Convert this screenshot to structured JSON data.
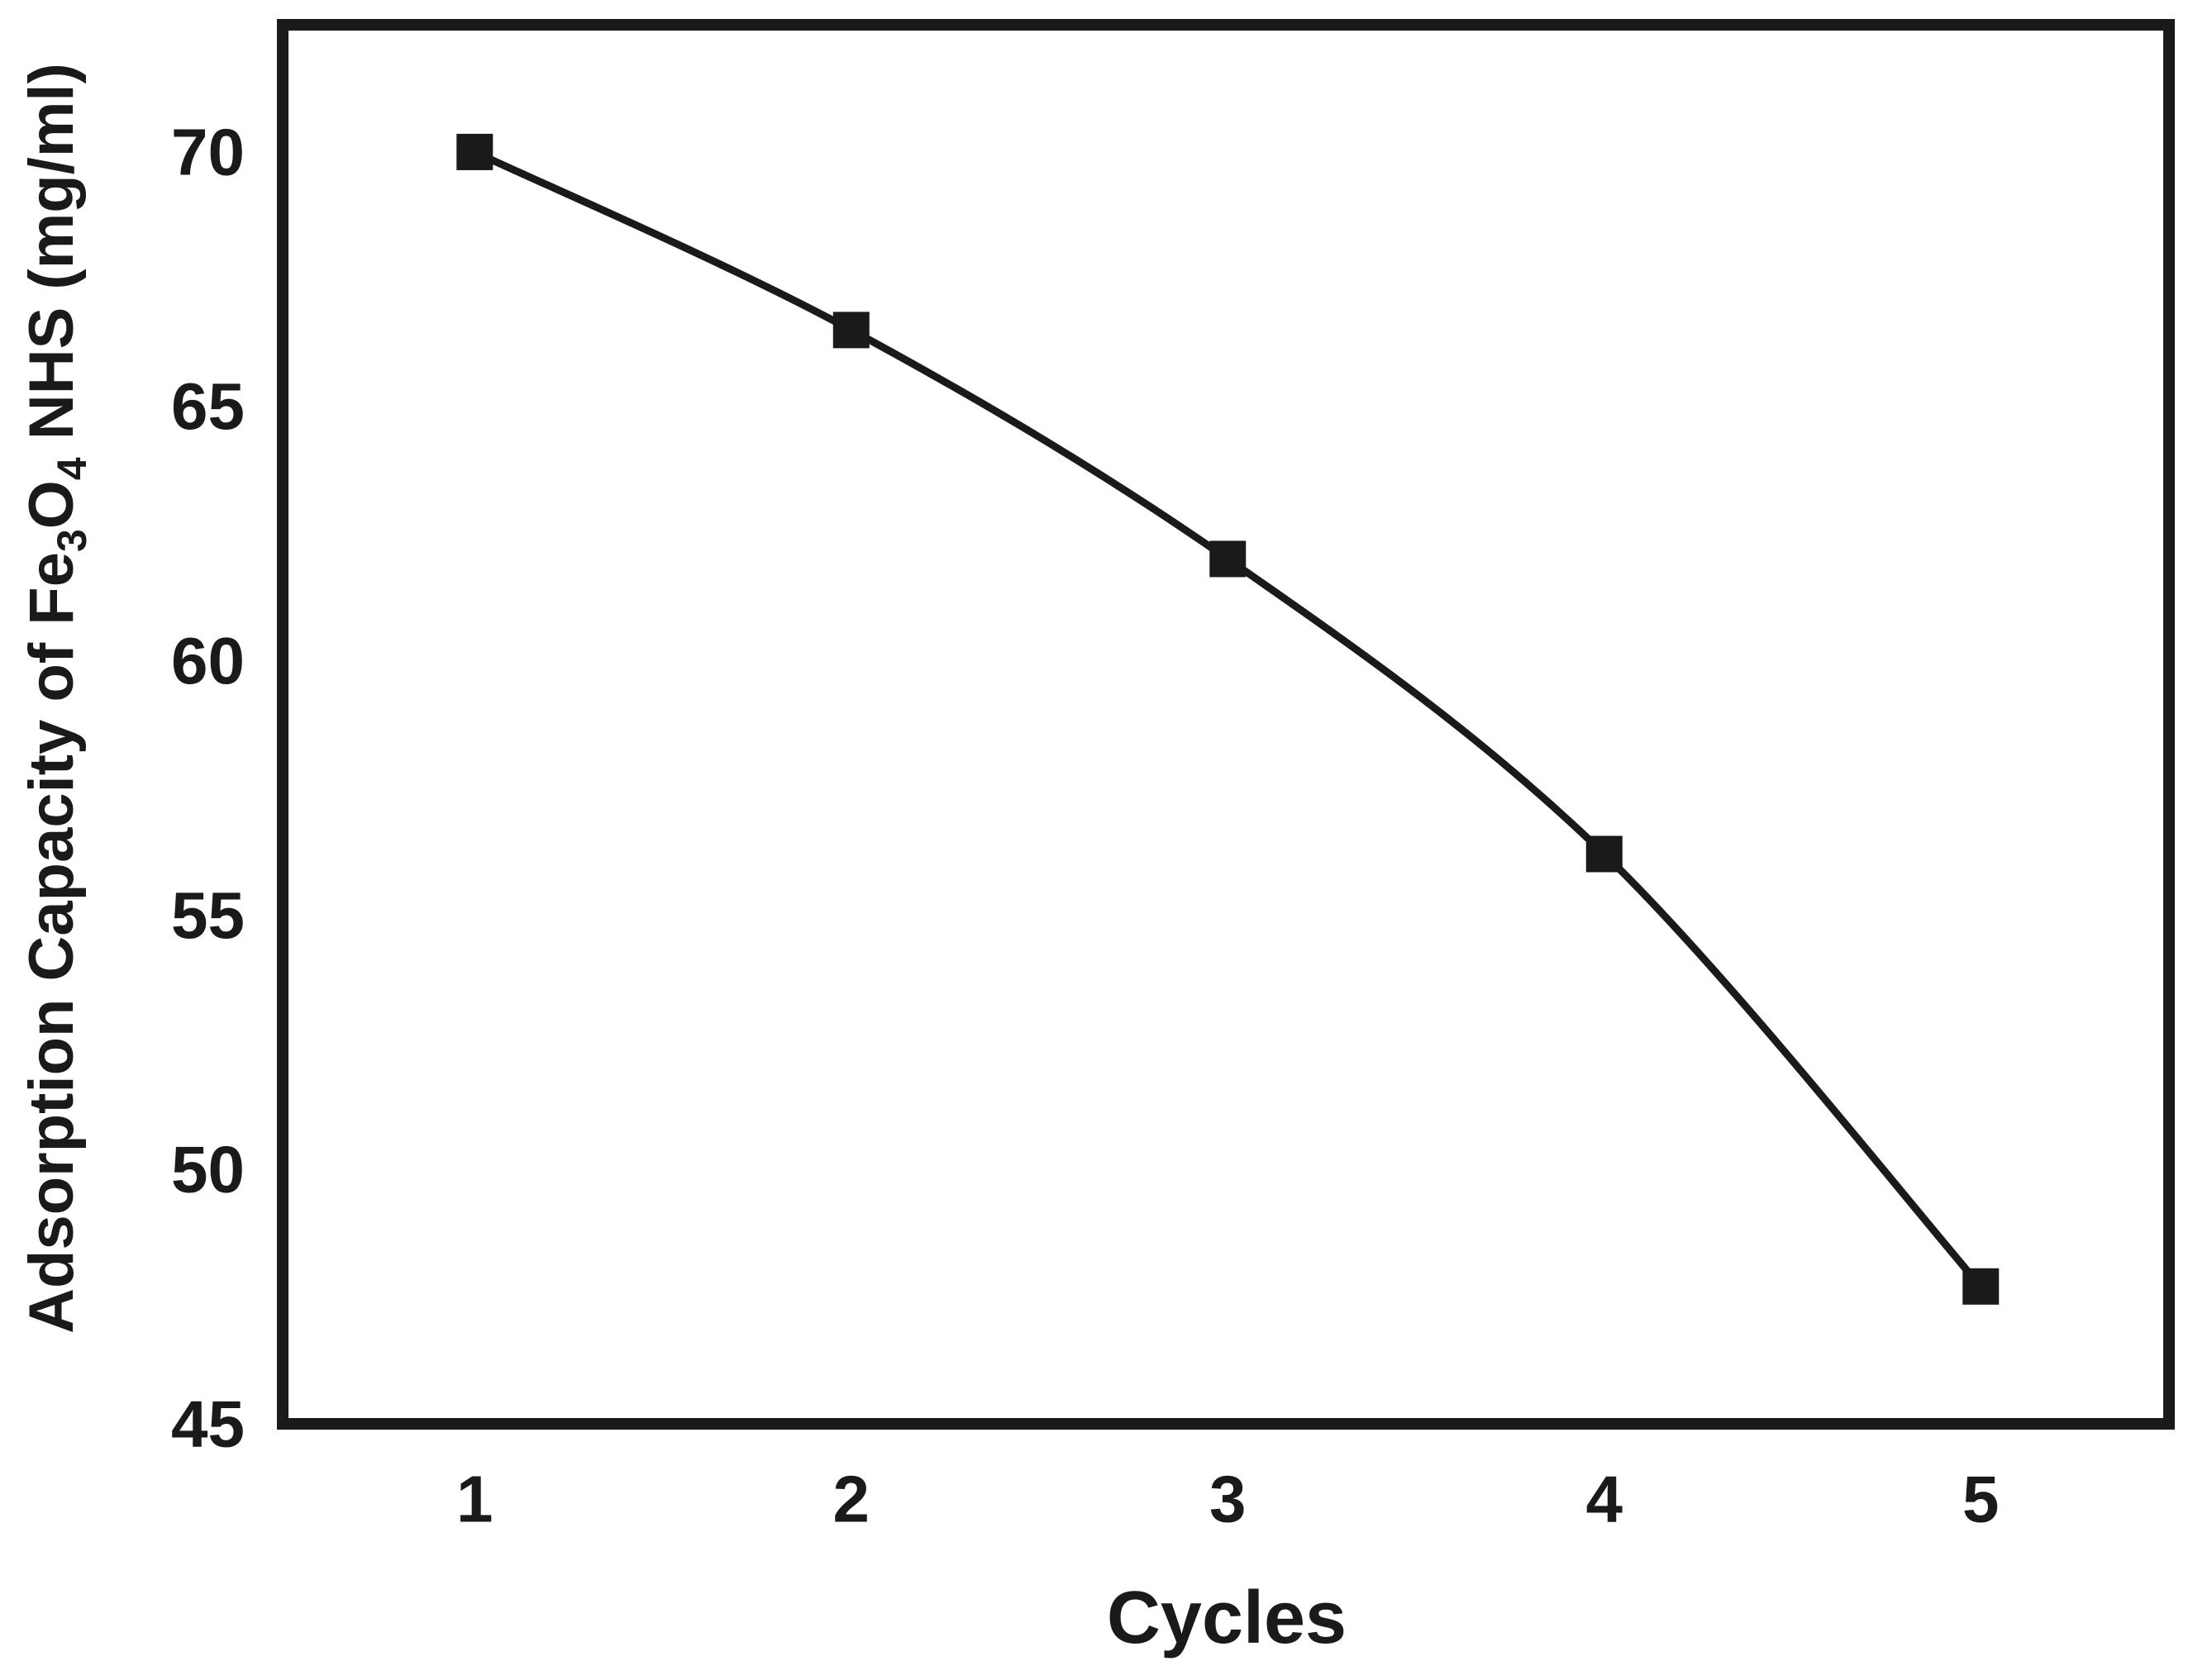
{
  "figure": {
    "background_color": "#ffffff",
    "ink_color": "#1a1a1a"
  },
  "chart_data": {
    "type": "line",
    "title": "",
    "xlabel": "Cycles",
    "ylabel": "Adsorption Capacity of Fe3O4 NHS (mg/ml)",
    "ylabel_segments": [
      {
        "text": "Adsorption Capacity of Fe",
        "sub": false
      },
      {
        "text": "3",
        "sub": true
      },
      {
        "text": "O",
        "sub": false
      },
      {
        "text": "4",
        "sub": true
      },
      {
        "text": " NHS (mg/ml)",
        "sub": false
      }
    ],
    "x": [
      1,
      2,
      3,
      4,
      5
    ],
    "series": [
      {
        "name": "Adsorption capacity of Fe3O4 NHS",
        "values": [
          70.0,
          66.5,
          62.0,
          56.2,
          47.7
        ]
      }
    ],
    "x_ticks": [
      "1",
      "2",
      "3",
      "4",
      "5"
    ],
    "y_ticks": [
      "45",
      "50",
      "55",
      "60",
      "65",
      "70"
    ],
    "x_tick_values": [
      1,
      2,
      3,
      4,
      5
    ],
    "y_tick_values": [
      45,
      50,
      55,
      60,
      65,
      70
    ],
    "xlim": [
      0.49,
      5.5
    ],
    "ylim": [
      45,
      72.5
    ],
    "grid": false,
    "legend_position": "none",
    "marker": "square",
    "line_color": "#1a1a1a",
    "marker_color": "#1a1a1a",
    "frame_color": "#1a1a1a"
  }
}
